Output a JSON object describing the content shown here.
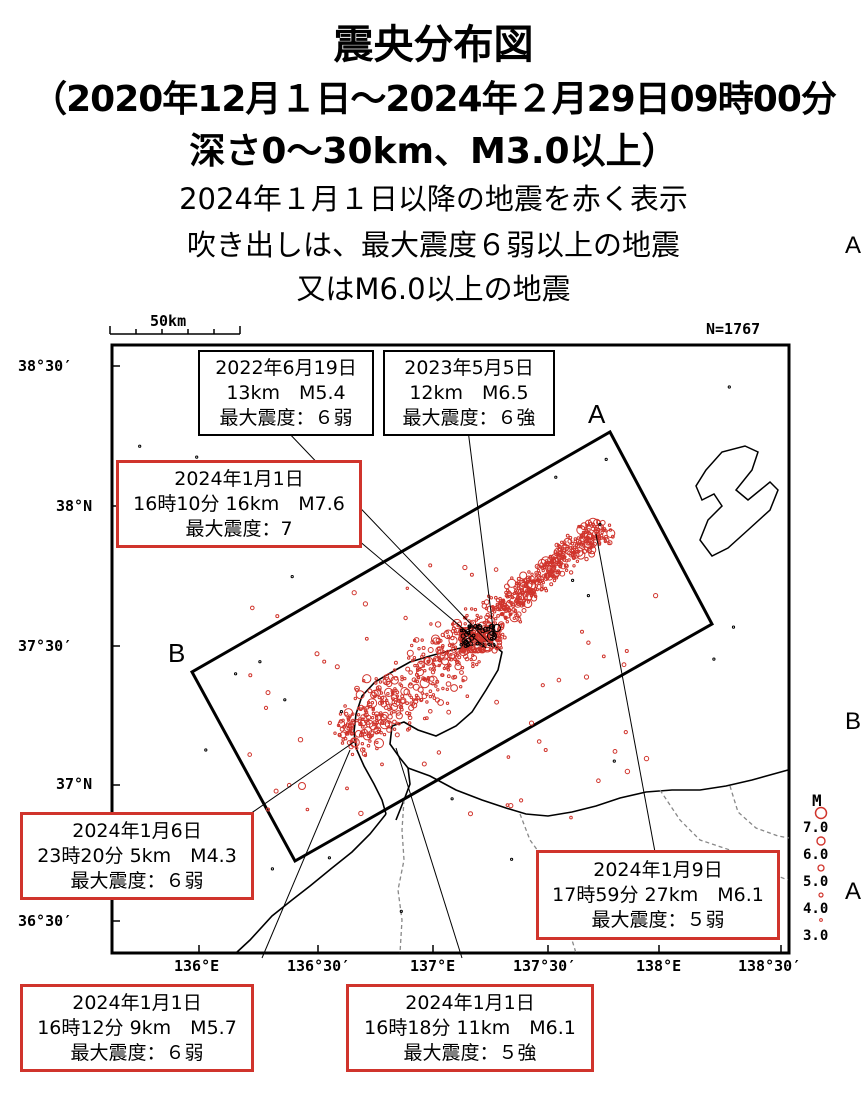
{
  "title": {
    "line1": "震央分布図",
    "line2": "（2020年12月１日～2024年２月29日09時00分",
    "line3": "深さ0～30km、M3.0以上）"
  },
  "subtitle": {
    "line1": "2024年１月１日以降の地震を赤く表示",
    "line2": "吹き出しは、最大震度６弱以上の地震",
    "line3": "又はM6.0以上の地震"
  },
  "side_labels": {
    "a_top": "A",
    "b_mid": "B",
    "a_bottom": "A"
  },
  "map": {
    "scale_label": "50km",
    "count_label": "N=1767",
    "lat_labels": [
      "38°30′",
      "38°N",
      "37°30′",
      "37°N",
      "36°30′"
    ],
    "lon_labels": [
      "136°E",
      "136°30′",
      "137°E",
      "137°30′",
      "138°E",
      "138°30′"
    ],
    "section_labels": {
      "a": "A",
      "b": "B"
    },
    "legend_title": "M",
    "legend_values": [
      "7.0",
      "6.0",
      "5.0",
      "4.0",
      "3.0"
    ],
    "colors": {
      "recent": "#d0342c",
      "older": "#000000"
    }
  },
  "callouts": [
    {
      "date": "2022年6月19日",
      "detail": "13km　M5.4",
      "intensity": "最大震度：６弱",
      "style": "black"
    },
    {
      "date": "2023年5月5日",
      "detail": "12km　M6.5",
      "intensity": "最大震度：６強",
      "style": "black"
    },
    {
      "date": "2024年1月1日",
      "detail": "16時10分 16km　M7.6",
      "intensity": "最大震度：7",
      "style": "red"
    },
    {
      "date": "2024年1月6日",
      "detail": "23時20分 5km　M4.3",
      "intensity": "最大震度：６弱",
      "style": "red"
    },
    {
      "date": "2024年1月9日",
      "detail": "17時59分 27km　M6.1",
      "intensity": "最大震度：５弱",
      "style": "red"
    },
    {
      "date": "2024年1月1日",
      "detail": "16時12分 9km　M5.7",
      "intensity": "最大震度：６弱",
      "style": "red"
    },
    {
      "date": "2024年1月1日",
      "detail": "16時18分 11km　M6.1",
      "intensity": "最大震度：５強",
      "style": "red"
    }
  ]
}
